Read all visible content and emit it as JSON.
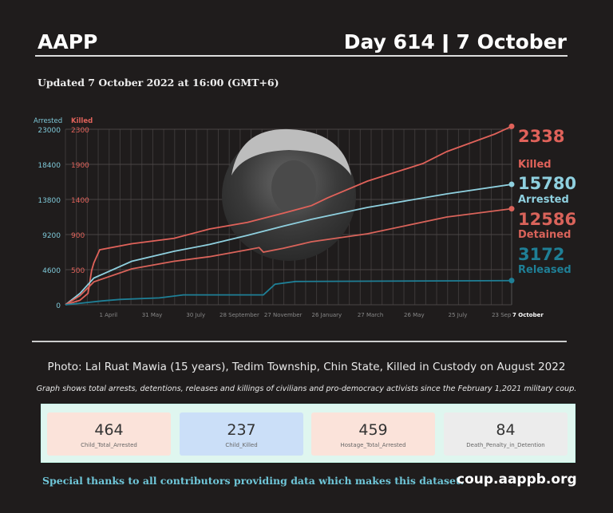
{
  "header": {
    "brand": "AAPP",
    "day": "Day 614 ǀ 7 October"
  },
  "updated": "Updated 7 October 2022 at 16:00 (GMT+6)",
  "captions": {
    "photo": "Photo: Lal Ruat Mawia (15 years), Tedim Township, Chin State, Killed in Custody on August 2022",
    "graph": "Graph shows total arrests, detentions, releases and killings of civilians and pro-democracy activists since the February 1,2021 military coup."
  },
  "stats": [
    {
      "value": "464",
      "label": "Child_Total_Arrested",
      "color": "#fbe3da"
    },
    {
      "value": "237",
      "label": "Child_Killed",
      "color": "#cbdff8"
    },
    {
      "value": "459",
      "label": "Hostage_Total_Arrested",
      "color": "#fbe3da"
    },
    {
      "value": "84",
      "label": "Death_Penalty_in_Detention",
      "color": "#ececec"
    }
  ],
  "footer": {
    "thanks": "Special thanks to all contributors providing data which makes this dataset.",
    "url": "coup.aappb.org"
  },
  "chart_data": {
    "type": "line",
    "title": "",
    "x_unit": "days since 1 February 2021",
    "xlim": [
      0,
      613
    ],
    "left_axis": {
      "label": "Arrested",
      "ticks": [
        0,
        4600,
        9200,
        13800,
        18400,
        23000
      ],
      "ylim": [
        0,
        23000
      ],
      "color": "#7ec8d8"
    },
    "right_axis": {
      "label": "Killed",
      "ticks": [
        0,
        500,
        900,
        1400,
        1900,
        2300
      ],
      "ylim": [
        0,
        2300
      ],
      "color": "#e0625a"
    },
    "x_ticks": [
      {
        "day": 59,
        "label": "1 April"
      },
      {
        "day": 119,
        "label": "31 May"
      },
      {
        "day": 179,
        "label": "30 July"
      },
      {
        "day": 239,
        "label": "28 September"
      },
      {
        "day": 299,
        "label": "27 November"
      },
      {
        "day": 359,
        "label": "26 January"
      },
      {
        "day": 419,
        "label": "27 March"
      },
      {
        "day": 479,
        "label": "26 May"
      },
      {
        "day": 539,
        "label": "25 July"
      },
      {
        "day": 599,
        "label": "23 Sep"
      },
      {
        "day": 613,
        "label": "7 October"
      }
    ],
    "grid": true,
    "series": [
      {
        "name": "Killed",
        "axis": "right",
        "color": "#e0625a",
        "final": "2338",
        "x": [
          0,
          20,
          31,
          36,
          39,
          47,
          91,
          149,
          198,
          250,
          299,
          338,
          360,
          415,
          491,
          524,
          590,
          613
        ],
        "y": [
          0,
          60,
          150,
          450,
          550,
          720,
          800,
          870,
          993,
          1080,
          1200,
          1300,
          1400,
          1620,
          1850,
          2007,
          2237,
          2338
        ]
      },
      {
        "name": "Arrested",
        "axis": "left",
        "color": "#8fd0df",
        "final": "15780",
        "x": [
          0,
          20,
          39,
          91,
          149,
          198,
          250,
          299,
          338,
          415,
          524,
          613
        ],
        "y": [
          0,
          1500,
          3500,
          5700,
          7000,
          7900,
          9100,
          10300,
          11200,
          12750,
          14530,
          15780
        ]
      },
      {
        "name": "Detained",
        "axis": "left",
        "color": "#d9635a",
        "final": "12586",
        "x": [
          0,
          20,
          39,
          91,
          149,
          198,
          250,
          266,
          272,
          299,
          338,
          415,
          524,
          613
        ],
        "y": [
          0,
          1200,
          3000,
          4700,
          5700,
          6300,
          7200,
          7500,
          6900,
          7400,
          8260,
          9300,
          11500,
          12586
        ]
      },
      {
        "name": "Released",
        "axis": "left",
        "color": "#1f7f96",
        "final": "3172",
        "x": [
          0,
          20,
          50,
          75,
          129,
          162,
          272,
          288,
          316,
          613
        ],
        "y": [
          0,
          200,
          500,
          700,
          900,
          1300,
          1300,
          2700,
          3050,
          3172
        ]
      }
    ]
  }
}
